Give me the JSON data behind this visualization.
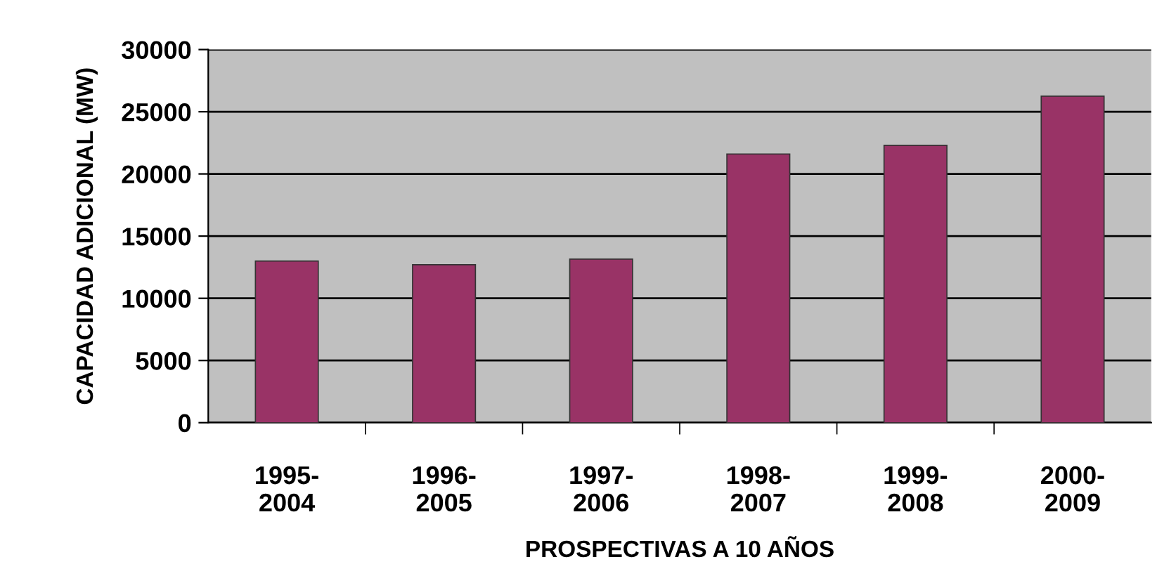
{
  "chart_data": {
    "type": "bar",
    "xlabel": "PROSPECTIVAS A 10 AÑOS",
    "ylabel": "CAPACIDAD ADICIONAL (MW)",
    "categories": [
      "1995-\n2004",
      "1996-\n2005",
      "1997-\n2006",
      "1998-\n2007",
      "1999-\n2008",
      "2000-\n2009"
    ],
    "series": [
      {
        "color": "#993366",
        "values": [
          13000,
          12700,
          13150,
          21600,
          22300,
          26250
        ]
      }
    ],
    "ylim": [
      0,
      30000
    ],
    "yticks": [
      0,
      5000,
      10000,
      15000,
      20000,
      25000,
      30000
    ],
    "grid": "y",
    "legend": false
  }
}
